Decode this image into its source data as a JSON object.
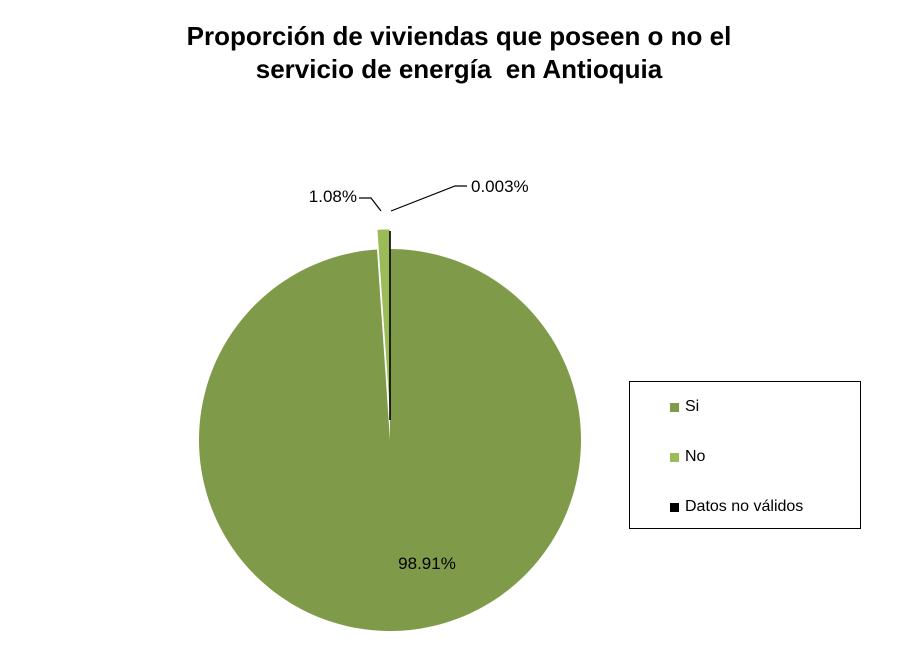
{
  "chart_data": {
    "type": "pie",
    "title_lines": [
      "Proporción de viviendas que poseen o no el",
      "servicio de energía  en Antioquia"
    ],
    "slices": [
      {
        "label": "Si",
        "value": 98.91,
        "data_label": "98.91%",
        "color": "#7f9b4a"
      },
      {
        "label": "No",
        "value": 1.08,
        "data_label": "1.08%",
        "color": "#9bbb59"
      },
      {
        "label": "Datos no válidos",
        "value": 0.003,
        "data_label": "0.003%",
        "color": "#000000"
      }
    ],
    "legend_position": "right"
  }
}
